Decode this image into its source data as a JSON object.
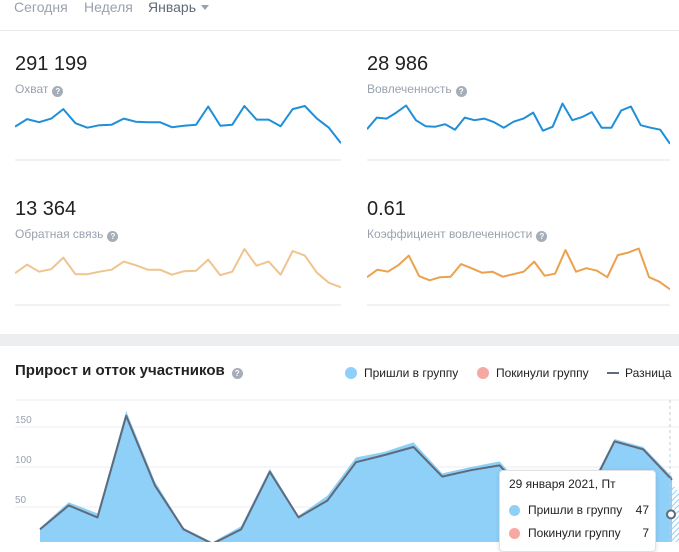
{
  "period_tabs": [
    {
      "label": "Сегодня"
    },
    {
      "label": "Неделя"
    },
    {
      "label": "Январь"
    }
  ],
  "stats": [
    {
      "value": "291 199",
      "label": "Охват",
      "color": "#1e8fd8",
      "sparkline": [
        0.51,
        0.36,
        0.42,
        0.35,
        0.16,
        0.44,
        0.53,
        0.48,
        0.47,
        0.35,
        0.41,
        0.42,
        0.42,
        0.52,
        0.49,
        0.47,
        0.11,
        0.49,
        0.47,
        0.1,
        0.37,
        0.37,
        0.5,
        0.16,
        0.1,
        0.35,
        0.53,
        0.84
      ]
    },
    {
      "value": "28 986",
      "label": "Вовлеченность",
      "color": "#1e8fd8",
      "sparkline": [
        0.56,
        0.33,
        0.35,
        0.23,
        0.09,
        0.38,
        0.5,
        0.51,
        0.46,
        0.57,
        0.33,
        0.38,
        0.35,
        0.42,
        0.53,
        0.41,
        0.35,
        0.23,
        0.59,
        0.51,
        0.05,
        0.38,
        0.32,
        0.22,
        0.53,
        0.53,
        0.19,
        0.11,
        0.48,
        0.53,
        0.57,
        0.85
      ]
    },
    {
      "value": "13 364",
      "label": "Обратная связь",
      "color": "#efc48f",
      "sparkline": [
        0.54,
        0.37,
        0.51,
        0.46,
        0.23,
        0.56,
        0.56,
        0.51,
        0.47,
        0.31,
        0.38,
        0.47,
        0.47,
        0.57,
        0.5,
        0.49,
        0.27,
        0.58,
        0.51,
        0.06,
        0.39,
        0.31,
        0.57,
        0.1,
        0.19,
        0.53,
        0.73,
        0.82
      ]
    },
    {
      "value": "0.61",
      "label": "Коэффициент вовлеченности",
      "color": "#eba14d",
      "sparkline": [
        0.62,
        0.47,
        0.51,
        0.38,
        0.19,
        0.6,
        0.68,
        0.62,
        0.61,
        0.36,
        0.44,
        0.53,
        0.51,
        0.61,
        0.56,
        0.51,
        0.31,
        0.59,
        0.55,
        0.08,
        0.51,
        0.44,
        0.49,
        0.62,
        0.18,
        0.13,
        0.05,
        0.62,
        0.71,
        0.86
      ]
    }
  ],
  "chart": {
    "title": "Прирост и отток участников",
    "legend": [
      {
        "label": "Пришли в группу",
        "color": "#8fd0f8",
        "kind": "dot"
      },
      {
        "label": "Покинули группу",
        "color": "#f7a8a2",
        "kind": "dot"
      },
      {
        "label": "Разница",
        "color": "#5f6b7a",
        "kind": "dash"
      }
    ]
  },
  "chart_data": {
    "type": "area",
    "title": "Прирост и отток участников",
    "y_ticks": [
      "150",
      "100",
      "50"
    ],
    "ylim": [
      0,
      185
    ],
    "grid": true,
    "series": [
      {
        "name": "Пришли в группу",
        "color": "#8fd0f8",
        "values": [
          24,
          56,
          42,
          170,
          82,
          24,
          6,
          26,
          98,
          39,
          64,
          112,
          119,
          131,
          92,
          100,
          107,
          67,
          72,
          65,
          135,
          125,
          88
        ]
      },
      {
        "name": "Разница",
        "color": "#5f6b7a",
        "values": [
          22,
          52,
          37,
          164,
          77,
          22,
          4,
          22,
          94,
          37,
          58,
          106,
          115,
          125,
          88,
          96,
          102,
          63,
          68,
          60,
          132,
          122,
          84
        ]
      }
    ]
  },
  "tooltip": {
    "date": "29 января 2021, Пт",
    "rows": [
      {
        "label": "Пришли в группу",
        "value": "47",
        "color": "#8fd0f8"
      },
      {
        "label": "Покинули группу",
        "value": "7",
        "color": "#f7a8a2"
      }
    ]
  }
}
